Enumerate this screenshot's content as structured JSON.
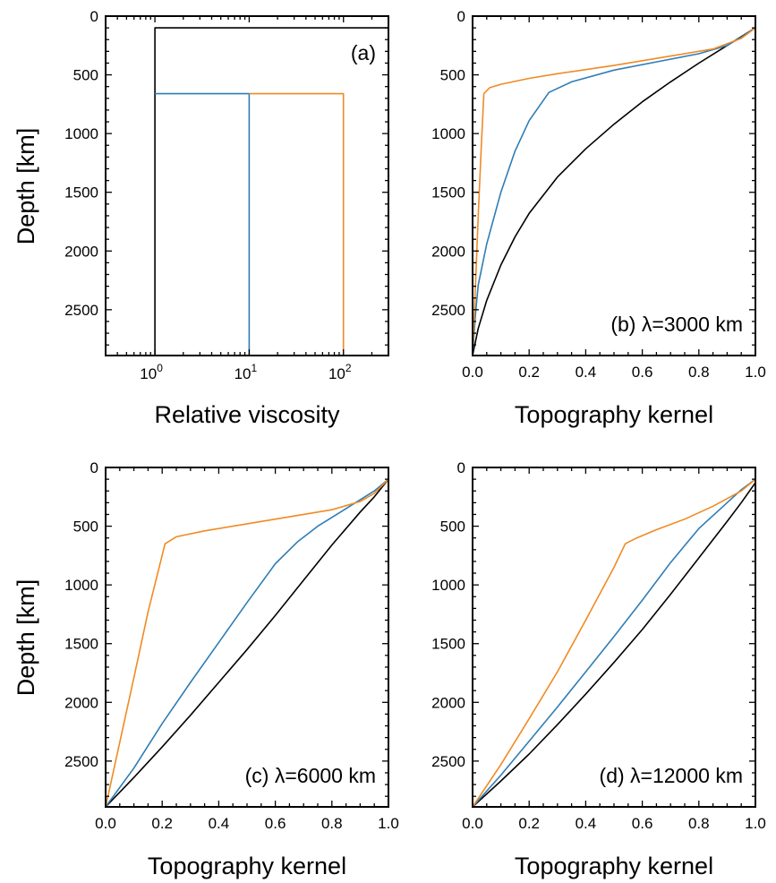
{
  "colors": {
    "black": "#000000",
    "blue": "#2e7db5",
    "orange": "#f08a24"
  },
  "chart_data": [
    {
      "id": "a",
      "type": "line",
      "annotation": "(a)",
      "xlabel": "Relative viscosity",
      "ylabel": "Depth [km]",
      "xscale": "log",
      "xlim": [
        0.3,
        300
      ],
      "ylim": [
        2890,
        0
      ],
      "xticks": [
        1,
        10,
        100
      ],
      "xtick_labels": [
        {
          "base": "10",
          "exp": "0"
        },
        {
          "base": "10",
          "exp": "1"
        },
        {
          "base": "10",
          "exp": "2"
        }
      ],
      "yticks": [
        0,
        500,
        1000,
        1500,
        2000,
        2500
      ],
      "ytick_labels": [
        "0",
        "500",
        "1000",
        "1500",
        "2000",
        "2500"
      ],
      "series": [
        {
          "color": "black",
          "points": [
            [
              1,
              2890
            ],
            [
              1,
              100
            ],
            [
              300,
              100
            ]
          ]
        },
        {
          "color": "blue",
          "points": [
            [
              1,
              660
            ],
            [
              10,
              660
            ],
            [
              10,
              2890
            ]
          ]
        },
        {
          "color": "orange",
          "points": [
            [
              10,
              660
            ],
            [
              100,
              660
            ],
            [
              100,
              2890
            ]
          ]
        }
      ]
    },
    {
      "id": "b",
      "type": "line",
      "annotation": "(b) λ=3000 km",
      "xlabel": "Topography kernel",
      "ylabel": "",
      "xlim": [
        0,
        1
      ],
      "ylim": [
        2890,
        0
      ],
      "xticks": [
        0,
        0.2,
        0.4,
        0.6,
        0.8,
        1.0
      ],
      "xtick_labels": [
        "0.0",
        "0.2",
        "0.4",
        "0.6",
        "0.8",
        "1.0"
      ],
      "yticks": [
        0,
        500,
        1000,
        1500,
        2000,
        2500
      ],
      "ytick_labels": [
        "0",
        "500",
        "1000",
        "1500",
        "2000",
        "2500"
      ],
      "series": [
        {
          "color": "black",
          "points": [
            [
              0,
              2890
            ],
            [
              0.02,
              2660
            ],
            [
              0.05,
              2420
            ],
            [
              0.1,
              2120
            ],
            [
              0.15,
              1880
            ],
            [
              0.2,
              1680
            ],
            [
              0.3,
              1370
            ],
            [
              0.4,
              1130
            ],
            [
              0.5,
              920
            ],
            [
              0.6,
              730
            ],
            [
              0.7,
              560
            ],
            [
              0.8,
              400
            ],
            [
              0.9,
              250
            ],
            [
              0.95,
              175
            ],
            [
              1.0,
              100
            ]
          ]
        },
        {
          "color": "blue",
          "points": [
            [
              0,
              2890
            ],
            [
              0.01,
              2540
            ],
            [
              0.02,
              2290
            ],
            [
              0.05,
              1940
            ],
            [
              0.1,
              1500
            ],
            [
              0.15,
              1150
            ],
            [
              0.2,
              890
            ],
            [
              0.27,
              650
            ],
            [
              0.35,
              560
            ],
            [
              0.5,
              460
            ],
            [
              0.65,
              390
            ],
            [
              0.8,
              320
            ],
            [
              0.9,
              250
            ],
            [
              0.95,
              180
            ],
            [
              1.0,
              100
            ]
          ]
        },
        {
          "color": "orange",
          "points": [
            [
              0,
              2890
            ],
            [
              0.01,
              2300
            ],
            [
              0.02,
              1700
            ],
            [
              0.03,
              1150
            ],
            [
              0.04,
              660
            ],
            [
              0.06,
              610
            ],
            [
              0.1,
              580
            ],
            [
              0.2,
              530
            ],
            [
              0.3,
              490
            ],
            [
              0.5,
              420
            ],
            [
              0.7,
              340
            ],
            [
              0.85,
              280
            ],
            [
              0.95,
              190
            ],
            [
              1.0,
              100
            ]
          ]
        }
      ]
    },
    {
      "id": "c",
      "type": "line",
      "annotation": "(c) λ=6000 km",
      "xlabel": "Topography kernel",
      "ylabel": "Depth [km]",
      "xlim": [
        0,
        1
      ],
      "ylim": [
        2890,
        0
      ],
      "xticks": [
        0,
        0.2,
        0.4,
        0.6,
        0.8,
        1.0
      ],
      "xtick_labels": [
        "0.0",
        "0.2",
        "0.4",
        "0.6",
        "0.8",
        "1.0"
      ],
      "yticks": [
        0,
        500,
        1000,
        1500,
        2000,
        2500
      ],
      "ytick_labels": [
        "0",
        "500",
        "1000",
        "1500",
        "2000",
        "2500"
      ],
      "series": [
        {
          "color": "black",
          "points": [
            [
              0,
              2890
            ],
            [
              0.1,
              2640
            ],
            [
              0.2,
              2380
            ],
            [
              0.3,
              2110
            ],
            [
              0.4,
              1830
            ],
            [
              0.5,
              1550
            ],
            [
              0.6,
              1260
            ],
            [
              0.7,
              960
            ],
            [
              0.8,
              660
            ],
            [
              0.9,
              380
            ],
            [
              0.95,
              250
            ],
            [
              1.0,
              100
            ]
          ]
        },
        {
          "color": "blue",
          "points": [
            [
              0,
              2890
            ],
            [
              0.1,
              2560
            ],
            [
              0.2,
              2180
            ],
            [
              0.3,
              1830
            ],
            [
              0.4,
              1490
            ],
            [
              0.5,
              1150
            ],
            [
              0.6,
              820
            ],
            [
              0.68,
              630
            ],
            [
              0.75,
              500
            ],
            [
              0.85,
              350
            ],
            [
              0.95,
              200
            ],
            [
              1.0,
              100
            ]
          ]
        },
        {
          "color": "orange",
          "points": [
            [
              0,
              2890
            ],
            [
              0.05,
              2340
            ],
            [
              0.1,
              1790
            ],
            [
              0.15,
              1230
            ],
            [
              0.21,
              650
            ],
            [
              0.25,
              590
            ],
            [
              0.35,
              540
            ],
            [
              0.5,
              480
            ],
            [
              0.65,
              420
            ],
            [
              0.8,
              360
            ],
            [
              0.9,
              290
            ],
            [
              0.95,
              220
            ],
            [
              1.0,
              100
            ]
          ]
        }
      ]
    },
    {
      "id": "d",
      "type": "line",
      "annotation": "(d) λ=12000 km",
      "xlabel": "Topography kernel",
      "ylabel": "",
      "xlim": [
        0,
        1
      ],
      "ylim": [
        2890,
        0
      ],
      "xticks": [
        0,
        0.2,
        0.4,
        0.6,
        0.8,
        1.0
      ],
      "xtick_labels": [
        "0.0",
        "0.2",
        "0.4",
        "0.6",
        "0.8",
        "1.0"
      ],
      "yticks": [
        0,
        500,
        1000,
        1500,
        2000,
        2500
      ],
      "ytick_labels": [
        "0",
        "500",
        "1000",
        "1500",
        "2000",
        "2500"
      ],
      "series": [
        {
          "color": "black",
          "points": [
            [
              0,
              2890
            ],
            [
              0.1,
              2670
            ],
            [
              0.2,
              2440
            ],
            [
              0.3,
              2190
            ],
            [
              0.4,
              1930
            ],
            [
              0.5,
              1660
            ],
            [
              0.6,
              1380
            ],
            [
              0.7,
              1080
            ],
            [
              0.8,
              770
            ],
            [
              0.9,
              460
            ],
            [
              0.95,
              300
            ],
            [
              1.0,
              130
            ]
          ]
        },
        {
          "color": "blue",
          "points": [
            [
              0,
              2890
            ],
            [
              0.1,
              2620
            ],
            [
              0.2,
              2330
            ],
            [
              0.3,
              2040
            ],
            [
              0.4,
              1740
            ],
            [
              0.5,
              1440
            ],
            [
              0.6,
              1130
            ],
            [
              0.7,
              810
            ],
            [
              0.8,
              520
            ],
            [
              0.9,
              300
            ],
            [
              0.95,
              190
            ],
            [
              1.0,
              100
            ]
          ]
        },
        {
          "color": "orange",
          "points": [
            [
              0,
              2890
            ],
            [
              0.1,
              2530
            ],
            [
              0.2,
              2140
            ],
            [
              0.3,
              1740
            ],
            [
              0.4,
              1300
            ],
            [
              0.5,
              850
            ],
            [
              0.54,
              650
            ],
            [
              0.58,
              600
            ],
            [
              0.65,
              530
            ],
            [
              0.75,
              440
            ],
            [
              0.85,
              330
            ],
            [
              0.95,
              200
            ],
            [
              1.0,
              100
            ]
          ]
        }
      ]
    }
  ]
}
